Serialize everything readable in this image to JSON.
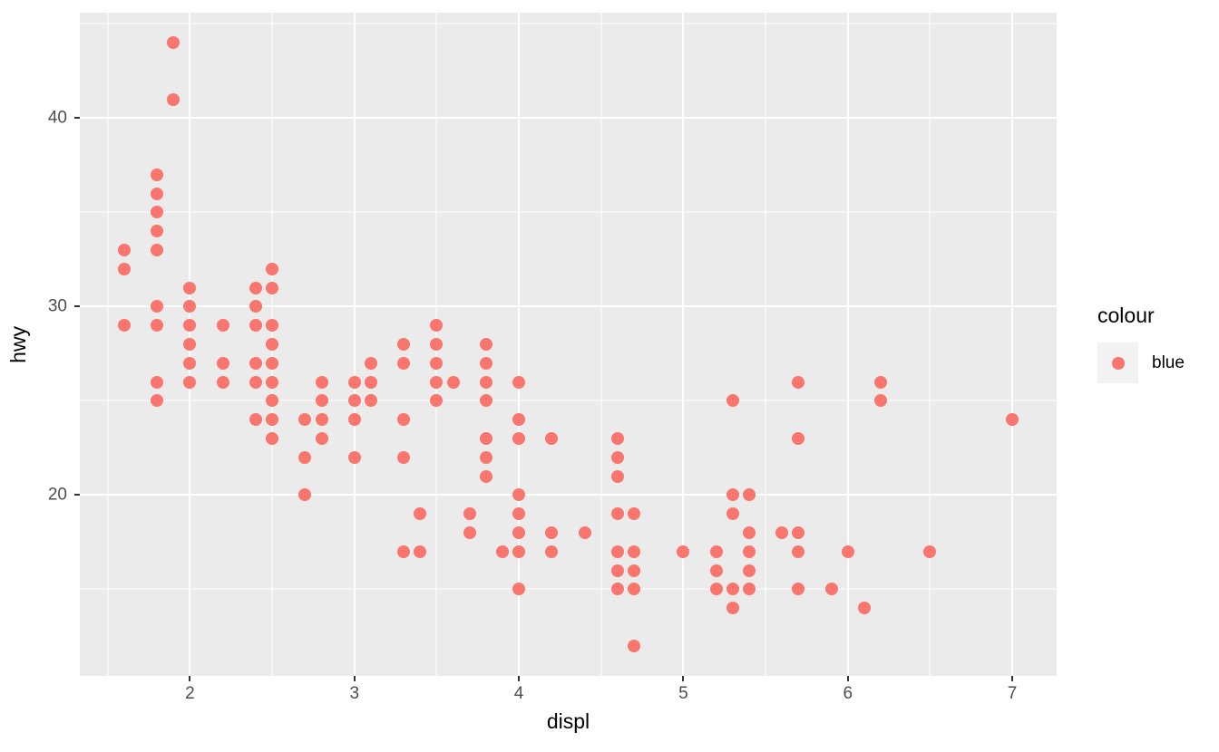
{
  "chart_data": {
    "type": "scatter",
    "title": "",
    "xlabel": "displ",
    "ylabel": "hwy",
    "xlim": [
      1.33,
      7.27
    ],
    "ylim": [
      10.4,
      45.6
    ],
    "x_major_ticks": [
      2,
      3,
      4,
      5,
      6,
      7
    ],
    "y_major_ticks": [
      20,
      30,
      40
    ],
    "x_minor_gridlines": [
      1.5,
      2.5,
      3.5,
      4.5,
      5.5,
      6.5
    ],
    "y_minor_gridlines": [
      15,
      25,
      35,
      45
    ],
    "grid": "white major and minor gridlines on grey panel",
    "legend_position": "right",
    "legend": {
      "title": "colour",
      "entries": [
        {
          "label": "blue",
          "color": "#F8766D"
        }
      ]
    },
    "series": [
      {
        "name": "blue",
        "color": "#F8766D",
        "points": [
          [
            1.6,
            33
          ],
          [
            1.6,
            32
          ],
          [
            1.6,
            29
          ],
          [
            1.8,
            37
          ],
          [
            1.8,
            36
          ],
          [
            1.8,
            35
          ],
          [
            1.8,
            34
          ],
          [
            1.8,
            33
          ],
          [
            1.8,
            30
          ],
          [
            1.8,
            29
          ],
          [
            1.8,
            26
          ],
          [
            1.8,
            25
          ],
          [
            1.9,
            44
          ],
          [
            1.9,
            41
          ],
          [
            2.0,
            31
          ],
          [
            2.0,
            30
          ],
          [
            2.0,
            29
          ],
          [
            2.0,
            28
          ],
          [
            2.0,
            27
          ],
          [
            2.0,
            26
          ],
          [
            2.2,
            29
          ],
          [
            2.2,
            27
          ],
          [
            2.2,
            26
          ],
          [
            2.4,
            31
          ],
          [
            2.4,
            30
          ],
          [
            2.4,
            29
          ],
          [
            2.4,
            27
          ],
          [
            2.4,
            26
          ],
          [
            2.4,
            24
          ],
          [
            2.5,
            32
          ],
          [
            2.5,
            31
          ],
          [
            2.5,
            29
          ],
          [
            2.5,
            28
          ],
          [
            2.5,
            27
          ],
          [
            2.5,
            26
          ],
          [
            2.5,
            25
          ],
          [
            2.5,
            24
          ],
          [
            2.5,
            23
          ],
          [
            2.7,
            24
          ],
          [
            2.7,
            22
          ],
          [
            2.7,
            20
          ],
          [
            2.8,
            26
          ],
          [
            2.8,
            25
          ],
          [
            2.8,
            24
          ],
          [
            2.8,
            23
          ],
          [
            3.0,
            26
          ],
          [
            3.0,
            25
          ],
          [
            3.0,
            24
          ],
          [
            3.0,
            22
          ],
          [
            3.1,
            27
          ],
          [
            3.1,
            26
          ],
          [
            3.1,
            25
          ],
          [
            3.3,
            28
          ],
          [
            3.3,
            27
          ],
          [
            3.3,
            24
          ],
          [
            3.3,
            22
          ],
          [
            3.3,
            17
          ],
          [
            3.4,
            19
          ],
          [
            3.4,
            17
          ],
          [
            3.5,
            29
          ],
          [
            3.5,
            28
          ],
          [
            3.5,
            27
          ],
          [
            3.5,
            26
          ],
          [
            3.5,
            25
          ],
          [
            3.6,
            26
          ],
          [
            3.7,
            19
          ],
          [
            3.7,
            18
          ],
          [
            3.8,
            28
          ],
          [
            3.8,
            27
          ],
          [
            3.8,
            26
          ],
          [
            3.8,
            25
          ],
          [
            3.8,
            23
          ],
          [
            3.8,
            22
          ],
          [
            3.8,
            21
          ],
          [
            3.9,
            17
          ],
          [
            4.0,
            26
          ],
          [
            4.0,
            24
          ],
          [
            4.0,
            23
          ],
          [
            4.0,
            20
          ],
          [
            4.0,
            19
          ],
          [
            4.0,
            18
          ],
          [
            4.0,
            17
          ],
          [
            4.0,
            15
          ],
          [
            4.2,
            23
          ],
          [
            4.2,
            18
          ],
          [
            4.2,
            17
          ],
          [
            4.4,
            18
          ],
          [
            4.6,
            23
          ],
          [
            4.6,
            22
          ],
          [
            4.6,
            21
          ],
          [
            4.6,
            19
          ],
          [
            4.6,
            17
          ],
          [
            4.6,
            16
          ],
          [
            4.6,
            15
          ],
          [
            4.7,
            19
          ],
          [
            4.7,
            17
          ],
          [
            4.7,
            16
          ],
          [
            4.7,
            15
          ],
          [
            4.7,
            12
          ],
          [
            5.0,
            17
          ],
          [
            5.2,
            17
          ],
          [
            5.2,
            16
          ],
          [
            5.2,
            15
          ],
          [
            5.3,
            25
          ],
          [
            5.3,
            20
          ],
          [
            5.3,
            19
          ],
          [
            5.3,
            15
          ],
          [
            5.3,
            14
          ],
          [
            5.4,
            20
          ],
          [
            5.4,
            18
          ],
          [
            5.4,
            17
          ],
          [
            5.4,
            16
          ],
          [
            5.4,
            15
          ],
          [
            5.6,
            18
          ],
          [
            5.7,
            26
          ],
          [
            5.7,
            23
          ],
          [
            5.7,
            18
          ],
          [
            5.7,
            17
          ],
          [
            5.7,
            15
          ],
          [
            5.9,
            15
          ],
          [
            6.0,
            17
          ],
          [
            6.1,
            14
          ],
          [
            6.2,
            26
          ],
          [
            6.2,
            25
          ],
          [
            6.5,
            17
          ],
          [
            7.0,
            24
          ]
        ]
      }
    ],
    "style_colors": {
      "point": "#F8766D",
      "panel_background": "#EBEBEB",
      "gridline": "#FFFFFF",
      "tick_text": "#4D4D4D",
      "tick_mark": "#333333",
      "axis_title_text": "#000000",
      "legend_key_background": "#F2F2F2",
      "page_background": "#FFFFFF"
    }
  }
}
